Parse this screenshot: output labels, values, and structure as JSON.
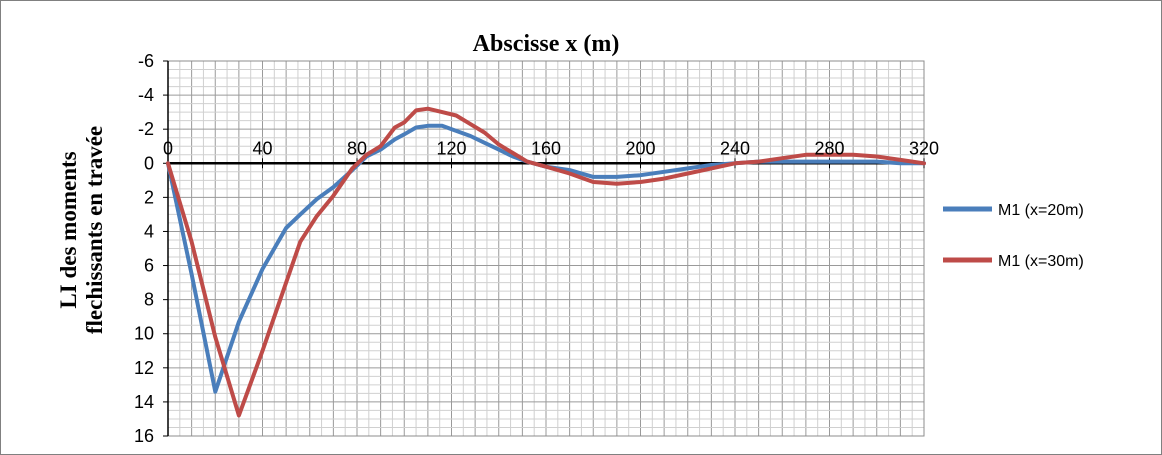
{
  "chart_data": {
    "type": "line",
    "title": "Abscisse x (m)",
    "ylabel": [
      "LI des moments",
      "flechissants en travée"
    ],
    "xlabel": "",
    "xlim": [
      0,
      320
    ],
    "ylim": [
      -6,
      16
    ],
    "y_inverted": true,
    "x_ticks": [
      0,
      40,
      80,
      120,
      160,
      200,
      240,
      280,
      320
    ],
    "x_tick_labels": [
      "0",
      "40",
      "80",
      "120",
      "160",
      "200",
      "240",
      "280",
      "320"
    ],
    "y_ticks": [
      -6,
      -4,
      -2,
      0,
      2,
      4,
      6,
      8,
      10,
      12,
      14,
      16
    ],
    "y_tick_labels": [
      "-6",
      "-4",
      "-2",
      "0",
      "2",
      "4",
      "6",
      "8",
      "10",
      "12",
      "14",
      "16"
    ],
    "grid": true,
    "legend_position": "right",
    "series": [
      {
        "name": "M1 (x=20m)",
        "color": "#4a7ebb",
        "x": [
          0,
          10,
          20,
          30,
          40,
          50,
          56,
          63,
          70,
          78,
          84,
          90,
          96,
          100,
          105,
          110,
          116,
          122,
          128,
          134,
          140,
          146,
          152,
          160,
          170,
          180,
          190,
          200,
          210,
          220,
          230,
          240,
          250,
          260,
          270,
          280,
          290,
          300,
          310,
          320
        ],
        "y": [
          0,
          6.5,
          13.4,
          9.3,
          6.2,
          3.8,
          3.0,
          2.1,
          1.4,
          0.4,
          -0.4,
          -0.8,
          -1.4,
          -1.7,
          -2.1,
          -2.2,
          -2.2,
          -1.9,
          -1.6,
          -1.2,
          -0.8,
          -0.4,
          -0.1,
          0.2,
          0.4,
          0.8,
          0.8,
          0.7,
          0.5,
          0.3,
          0.1,
          0.0,
          -0.1,
          -0.1,
          -0.1,
          -0.1,
          -0.1,
          -0.1,
          0.0,
          0.0
        ]
      },
      {
        "name": "M1 (x=30m)",
        "color": "#be4b48",
        "x": [
          0,
          10,
          20,
          30,
          40,
          50,
          56,
          63,
          70,
          78,
          84,
          90,
          96,
          100,
          105,
          110,
          116,
          122,
          128,
          134,
          140,
          146,
          152,
          160,
          170,
          180,
          190,
          200,
          210,
          220,
          230,
          240,
          250,
          260,
          270,
          280,
          290,
          300,
          310,
          320
        ],
        "y": [
          0,
          4.6,
          10.2,
          14.8,
          11.0,
          7.0,
          4.6,
          3.1,
          1.9,
          0.3,
          -0.5,
          -1.0,
          -2.1,
          -2.4,
          -3.1,
          -3.2,
          -3.0,
          -2.8,
          -2.3,
          -1.8,
          -1.1,
          -0.6,
          -0.1,
          0.2,
          0.6,
          1.1,
          1.2,
          1.1,
          0.9,
          0.6,
          0.3,
          0.0,
          -0.1,
          -0.3,
          -0.5,
          -0.5,
          -0.5,
          -0.4,
          -0.2,
          0.0
        ]
      }
    ]
  }
}
